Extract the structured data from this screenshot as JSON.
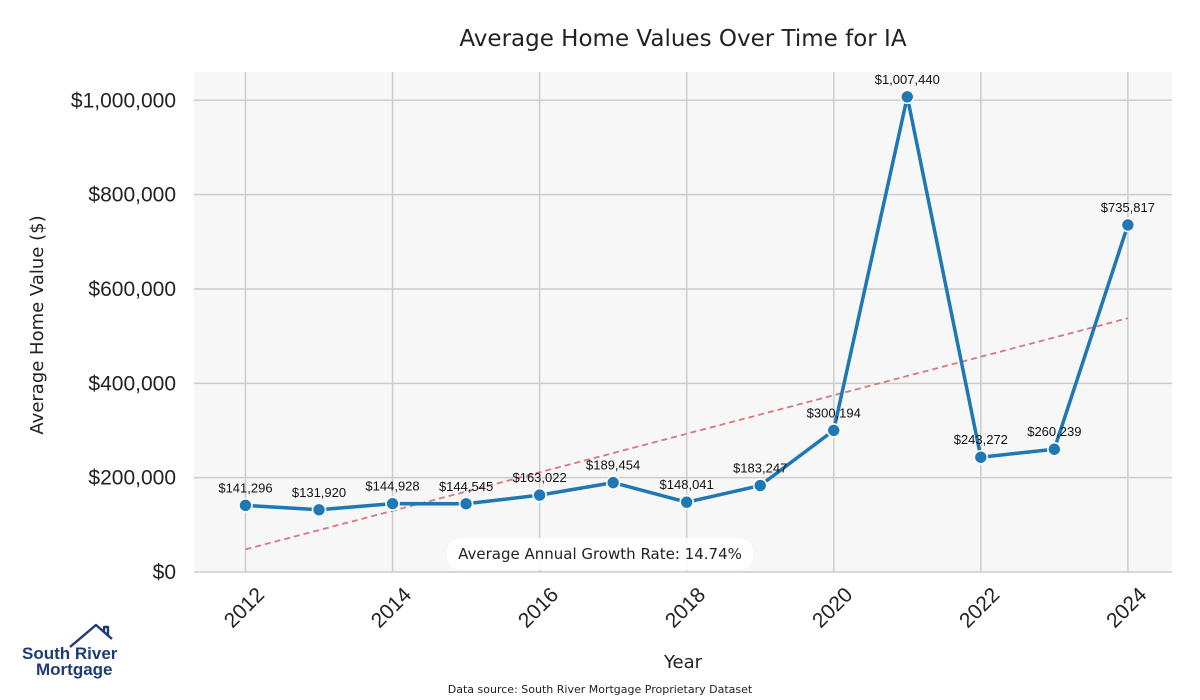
{
  "chart_data": {
    "type": "line",
    "title": "Average Home Values Over Time for IA",
    "xlabel": "Year",
    "ylabel": "Average Home Value ($)",
    "x": [
      2012,
      2013,
      2014,
      2015,
      2016,
      2017,
      2018,
      2019,
      2020,
      2021,
      2022,
      2023,
      2024
    ],
    "series": [
      {
        "values": [
          141296,
          131920,
          144928,
          144545,
          163022,
          189454,
          148041,
          183247,
          300194,
          1007440,
          243272,
          260239,
          735817
        ],
        "labels": [
          "$141,296",
          "$131,920",
          "$144,928",
          "$144,545",
          "$163,022",
          "$189,454",
          "$148,041",
          "$183,247",
          "$300,194",
          "$1,007,440",
          "$243,272",
          "$260,239",
          "$735,817"
        ],
        "color": "#1f77b4"
      }
    ],
    "trend_line": {
      "start": [
        2012,
        48000
      ],
      "end": [
        2024,
        538000
      ],
      "color": "#d9777a",
      "style": "dashed"
    },
    "xticks": [
      2012,
      2014,
      2016,
      2018,
      2020,
      2022,
      2024
    ],
    "xtick_labels": [
      "2012",
      "2014",
      "2016",
      "2018",
      "2020",
      "2022",
      "2024"
    ],
    "yticks": [
      0,
      200000,
      400000,
      600000,
      800000,
      1000000
    ],
    "ytick_labels": [
      "$0",
      "$200,000",
      "$400,000",
      "$600,000",
      "$800,000",
      "$1,000,000"
    ],
    "xlim": [
      2011.3,
      2024.6
    ],
    "ylim": [
      0,
      1060000
    ],
    "grid": true,
    "annotation": "Average Annual Growth Rate: 14.74%"
  },
  "footer": {
    "source": "Data source: South River Mortgage Proprietary Dataset",
    "logo_line1": "South River",
    "logo_line2": "Mortgage"
  },
  "colors": {
    "plot_background": "#f7f7f7",
    "grid": "#cccccc",
    "line": "#1f77b4",
    "trend": "#d9777a",
    "logo": "#1f3b73"
  }
}
